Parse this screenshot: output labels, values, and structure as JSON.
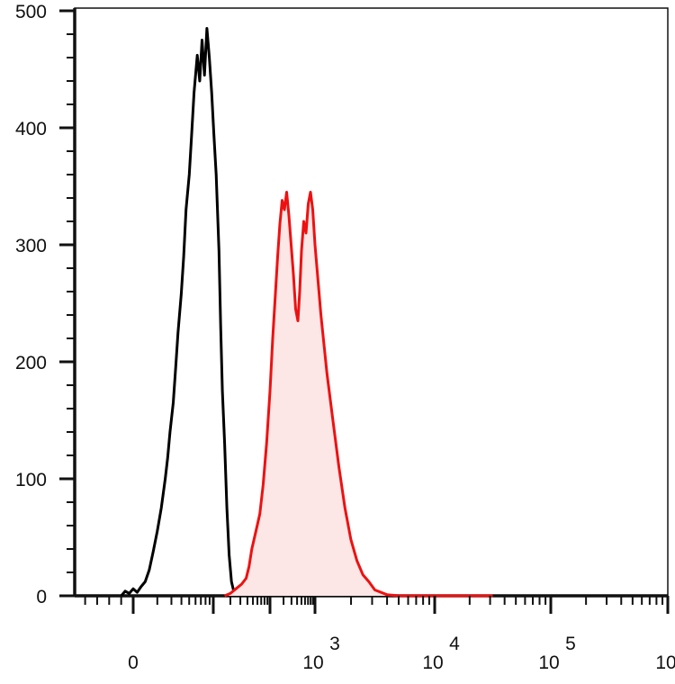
{
  "chart_data": {
    "type": "area",
    "x_scale": "biexponential",
    "y_axis": {
      "range": [
        0,
        510
      ],
      "ticks": [
        {
          "value": 0,
          "label": "0"
        },
        {
          "value": 100,
          "label": "100"
        },
        {
          "value": 200,
          "label": "200"
        },
        {
          "value": 300,
          "label": "300"
        },
        {
          "value": 400,
          "label": "400"
        },
        {
          "value": 500,
          "label": "500"
        }
      ]
    },
    "x_axis": {
      "ticks": [
        {
          "decade": 0,
          "base": "0",
          "exp": ""
        },
        {
          "decade": 3,
          "base": "10",
          "exp": "3"
        },
        {
          "decade": 4,
          "base": "10",
          "exp": "4"
        },
        {
          "decade": 5,
          "base": "10",
          "exp": "5"
        },
        {
          "decade": 6,
          "base": "10",
          "exp": "6"
        }
      ]
    },
    "grid": false,
    "legend": "none",
    "series": [
      {
        "color": "#000000",
        "fill": "none",
        "points": [
          [
            -0.15,
            0
          ],
          [
            -0.1,
            4
          ],
          [
            -0.05,
            2
          ],
          [
            0,
            6
          ],
          [
            0.05,
            3
          ],
          [
            0.1,
            8
          ],
          [
            0.15,
            12
          ],
          [
            0.2,
            22
          ],
          [
            0.25,
            38
          ],
          [
            0.3,
            55
          ],
          [
            0.35,
            75
          ],
          [
            0.4,
            100
          ],
          [
            0.43,
            118
          ],
          [
            0.46,
            140
          ],
          [
            0.5,
            165
          ],
          [
            0.53,
            195
          ],
          [
            0.56,
            225
          ],
          [
            0.6,
            258
          ],
          [
            0.63,
            290
          ],
          [
            0.66,
            330
          ],
          [
            0.7,
            360
          ],
          [
            0.73,
            395
          ],
          [
            0.76,
            430
          ],
          [
            0.8,
            462
          ],
          [
            0.83,
            440
          ],
          [
            0.86,
            475
          ],
          [
            0.89,
            445
          ],
          [
            0.92,
            485
          ],
          [
            0.95,
            460
          ],
          [
            0.98,
            430
          ],
          [
            1.01,
            395
          ],
          [
            1.05,
            360
          ],
          [
            1.1,
            295
          ],
          [
            1.13,
            230
          ],
          [
            1.16,
            175
          ],
          [
            1.2,
            130
          ],
          [
            1.24,
            75
          ],
          [
            1.28,
            35
          ],
          [
            1.32,
            12
          ],
          [
            1.36,
            4
          ],
          [
            1.4,
            0
          ]
        ]
      },
      {
        "color": "#ee1111",
        "fill": "#fde6e6",
        "points": [
          [
            1.2,
            0
          ],
          [
            1.3,
            2
          ],
          [
            1.4,
            6
          ],
          [
            1.5,
            10
          ],
          [
            1.58,
            15
          ],
          [
            1.63,
            25
          ],
          [
            1.68,
            40
          ],
          [
            1.75,
            55
          ],
          [
            1.82,
            70
          ],
          [
            1.88,
            95
          ],
          [
            1.94,
            130
          ],
          [
            2.0,
            175
          ],
          [
            2.06,
            220
          ],
          [
            2.12,
            258
          ],
          [
            2.17,
            290
          ],
          [
            2.22,
            318
          ],
          [
            2.27,
            338
          ],
          [
            2.32,
            330
          ],
          [
            2.37,
            345
          ],
          [
            2.42,
            325
          ],
          [
            2.47,
            300
          ],
          [
            2.52,
            275
          ],
          [
            2.57,
            245
          ],
          [
            2.62,
            235
          ],
          [
            2.66,
            260
          ],
          [
            2.7,
            295
          ],
          [
            2.75,
            320
          ],
          [
            2.8,
            310
          ],
          [
            2.85,
            335
          ],
          [
            2.9,
            345
          ],
          [
            2.95,
            330
          ],
          [
            3.0,
            300
          ],
          [
            3.05,
            240
          ],
          [
            3.1,
            190
          ],
          [
            3.15,
            150
          ],
          [
            3.2,
            110
          ],
          [
            3.25,
            75
          ],
          [
            3.3,
            48
          ],
          [
            3.35,
            30
          ],
          [
            3.4,
            18
          ],
          [
            3.45,
            12
          ],
          [
            3.5,
            5
          ],
          [
            3.6,
            1
          ],
          [
            3.7,
            0
          ],
          [
            4.5,
            0
          ]
        ]
      }
    ]
  }
}
